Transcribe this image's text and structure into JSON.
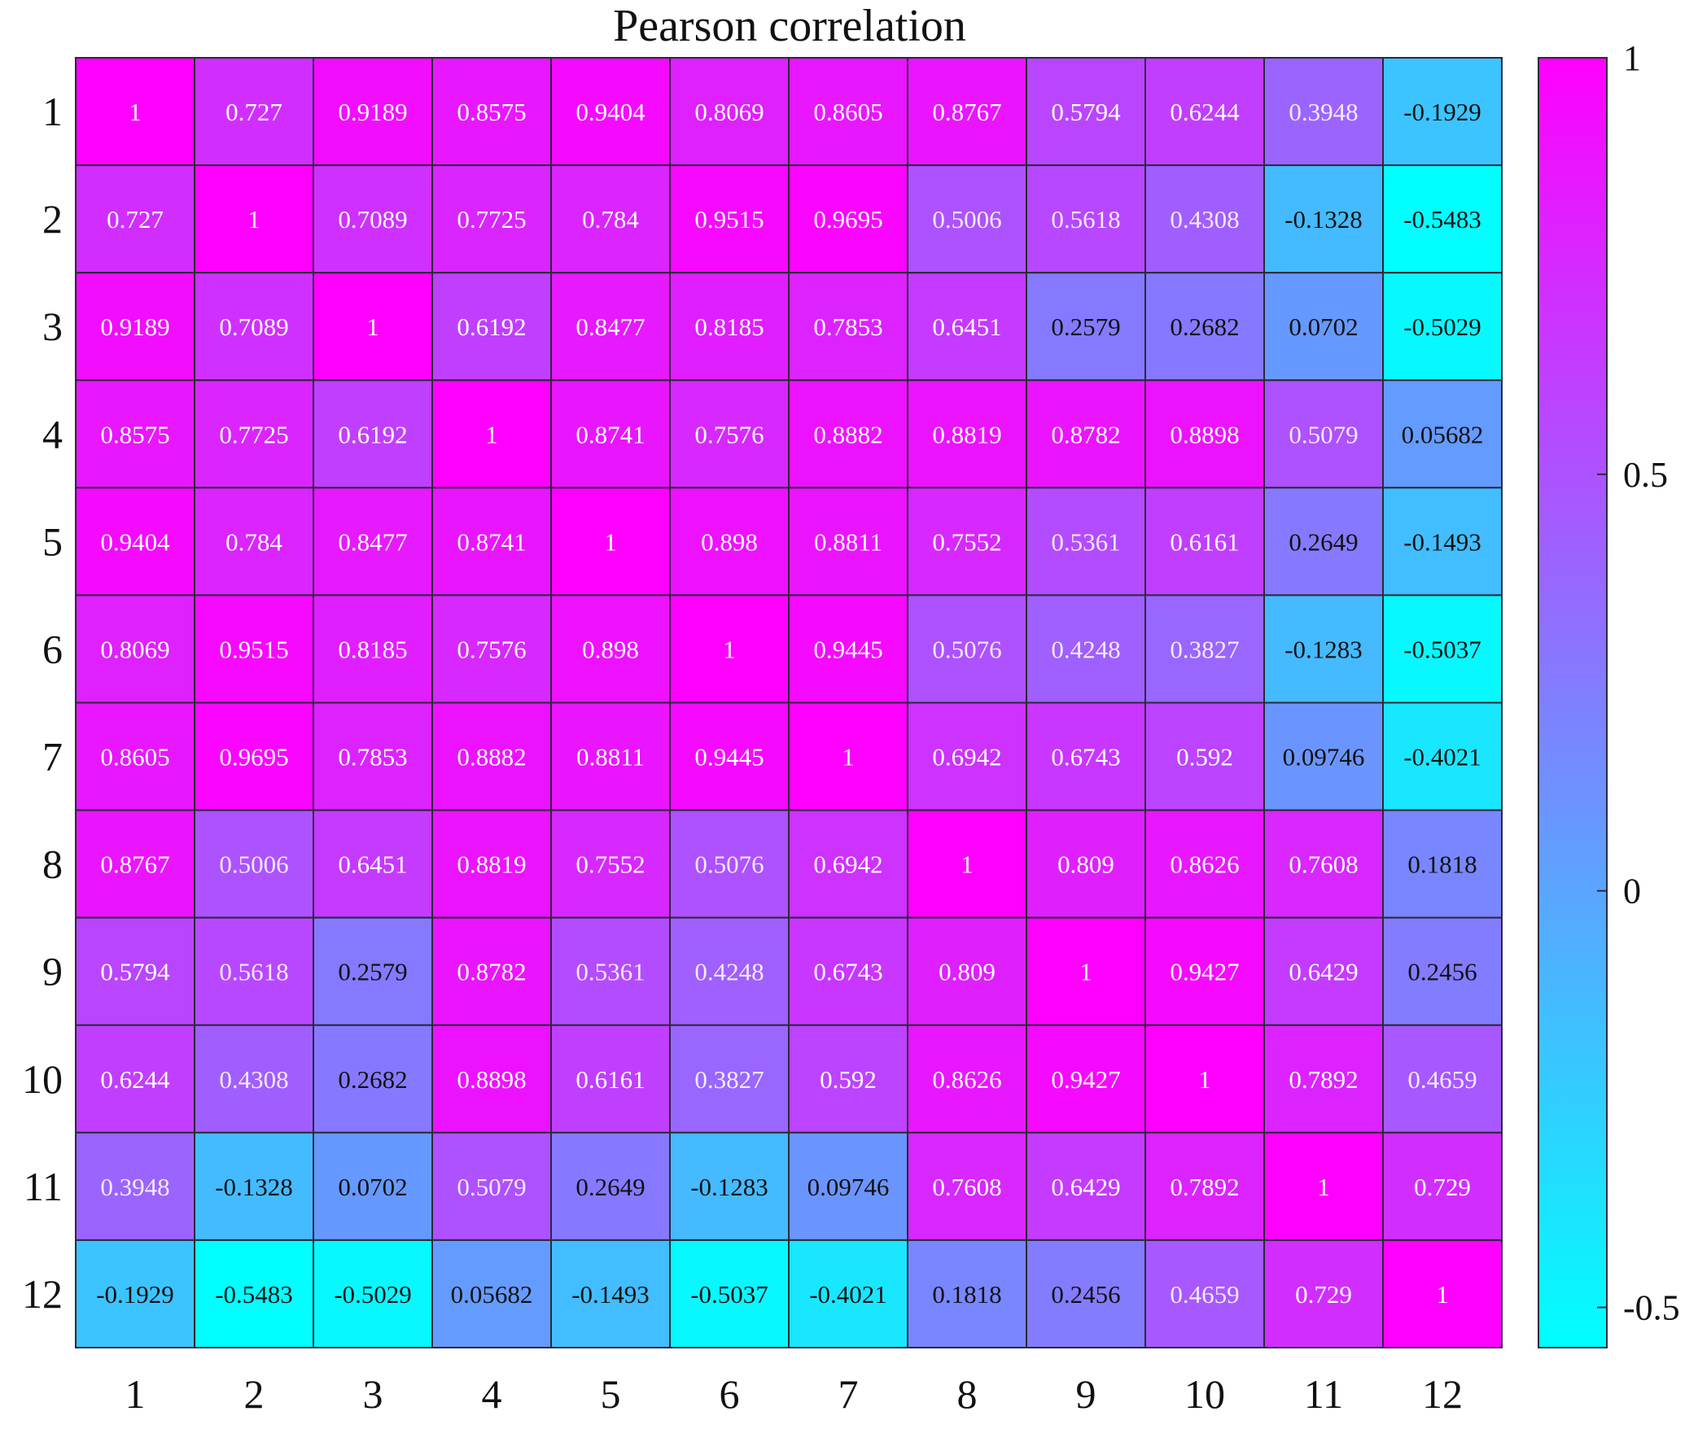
{
  "chart_data": {
    "type": "heatmap",
    "title": "Pearson correlation",
    "x_categories": [
      "1",
      "2",
      "3",
      "4",
      "5",
      "6",
      "7",
      "8",
      "9",
      "10",
      "11",
      "12"
    ],
    "y_categories": [
      "1",
      "2",
      "3",
      "4",
      "5",
      "6",
      "7",
      "8",
      "9",
      "10",
      "11",
      "12"
    ],
    "values": [
      [
        "1",
        "0.727",
        "0.9189",
        "0.8575",
        "0.9404",
        "0.8069",
        "0.8605",
        "0.8767",
        "0.5794",
        "0.6244",
        "0.3948",
        "-0.1929"
      ],
      [
        "0.727",
        "1",
        "0.7089",
        "0.7725",
        "0.784",
        "0.9515",
        "0.9695",
        "0.5006",
        "0.5618",
        "0.4308",
        "-0.1328",
        "-0.5483"
      ],
      [
        "0.9189",
        "0.7089",
        "1",
        "0.6192",
        "0.8477",
        "0.8185",
        "0.7853",
        "0.6451",
        "0.2579",
        "0.2682",
        "0.0702",
        "-0.5029"
      ],
      [
        "0.8575",
        "0.7725",
        "0.6192",
        "1",
        "0.8741",
        "0.7576",
        "0.8882",
        "0.8819",
        "0.8782",
        "0.8898",
        "0.5079",
        "0.05682"
      ],
      [
        "0.9404",
        "0.784",
        "0.8477",
        "0.8741",
        "1",
        "0.898",
        "0.8811",
        "0.7552",
        "0.5361",
        "0.6161",
        "0.2649",
        "-0.1493"
      ],
      [
        "0.8069",
        "0.9515",
        "0.8185",
        "0.7576",
        "0.898",
        "1",
        "0.9445",
        "0.5076",
        "0.4248",
        "0.3827",
        "-0.1283",
        "-0.5037"
      ],
      [
        "0.8605",
        "0.9695",
        "0.7853",
        "0.8882",
        "0.8811",
        "0.9445",
        "1",
        "0.6942",
        "0.6743",
        "0.592",
        "0.09746",
        "-0.4021"
      ],
      [
        "0.8767",
        "0.5006",
        "0.6451",
        "0.8819",
        "0.7552",
        "0.5076",
        "0.6942",
        "1",
        "0.809",
        "0.8626",
        "0.7608",
        "0.1818"
      ],
      [
        "0.5794",
        "0.5618",
        "0.2579",
        "0.8782",
        "0.5361",
        "0.4248",
        "0.6743",
        "0.809",
        "1",
        "0.9427",
        "0.6429",
        "0.2456"
      ],
      [
        "0.6244",
        "0.4308",
        "0.2682",
        "0.8898",
        "0.6161",
        "0.3827",
        "0.592",
        "0.8626",
        "0.9427",
        "1",
        "0.7892",
        "0.4659"
      ],
      [
        "0.3948",
        "-0.1328",
        "0.0702",
        "0.5079",
        "0.2649",
        "-0.1283",
        "0.09746",
        "0.7608",
        "0.6429",
        "0.7892",
        "1",
        "0.729"
      ],
      [
        "-0.1929",
        "-0.5483",
        "-0.5029",
        "0.05682",
        "-0.1493",
        "-0.5037",
        "-0.4021",
        "0.1818",
        "0.2456",
        "0.4659",
        "0.729",
        "1"
      ]
    ],
    "color_range": [
      -0.5483,
      1
    ],
    "colormap": [
      "#00ffff",
      "#ff00ff"
    ],
    "colorbar": {
      "ticks": [
        1,
        0.5,
        0,
        -0.5
      ],
      "tick_labels": [
        "1",
        "0.5",
        "0",
        "-0.5"
      ],
      "placement": "right"
    },
    "grid": true
  }
}
